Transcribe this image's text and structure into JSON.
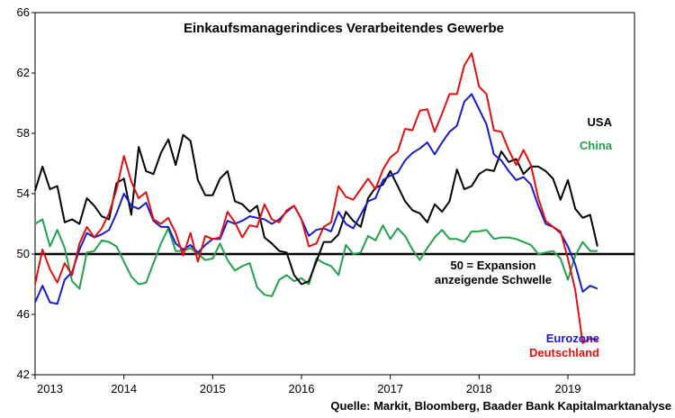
{
  "chart_data": {
    "type": "line",
    "title": "Einkaufsmanagerindices Verarbeitendes Gewerbe",
    "source": "Quelle: Markit, Bloomberg, Baader Bank Kapitalmarktanalyse",
    "ylim": [
      42,
      66
    ],
    "yticks": [
      "42",
      "46",
      "50",
      "54",
      "58",
      "62",
      "66"
    ],
    "xlim": [
      2013,
      2019.75
    ],
    "xticks": [
      "2013",
      "2014",
      "2015",
      "2016",
      "2017",
      "2018",
      "2019"
    ],
    "threshold": {
      "value": 50,
      "label_line1": "50 = Expansion",
      "label_line2": "anzeigende Schwelle"
    },
    "colors": {
      "USA": "#000000",
      "China": "#22a14a",
      "Eurozone": "#1a1acc",
      "Deutschland": "#e01010"
    },
    "series": [
      {
        "name": "USA",
        "x": [
          2013.0,
          2013.083,
          2013.167,
          2013.25,
          2013.333,
          2013.417,
          2013.5,
          2013.583,
          2013.667,
          2013.75,
          2013.833,
          2013.917,
          2014.0,
          2014.083,
          2014.167,
          2014.25,
          2014.333,
          2014.417,
          2014.5,
          2014.583,
          2014.667,
          2014.75,
          2014.833,
          2014.917,
          2015.0,
          2015.083,
          2015.167,
          2015.25,
          2015.333,
          2015.417,
          2015.5,
          2015.583,
          2015.667,
          2015.75,
          2015.833,
          2015.917,
          2016.0,
          2016.083,
          2016.167,
          2016.25,
          2016.333,
          2016.417,
          2016.5,
          2016.583,
          2016.667,
          2016.75,
          2016.833,
          2016.917,
          2017.0,
          2017.083,
          2017.167,
          2017.25,
          2017.333,
          2017.417,
          2017.5,
          2017.583,
          2017.667,
          2017.75,
          2017.833,
          2017.917,
          2018.0,
          2018.083,
          2018.167,
          2018.25,
          2018.333,
          2018.417,
          2018.5,
          2018.583,
          2018.667,
          2018.75,
          2018.833,
          2018.917,
          2019.0,
          2019.083,
          2019.167,
          2019.25,
          2019.333
        ],
        "values": [
          54.2,
          55.8,
          54.3,
          54.5,
          52.1,
          52.3,
          52.0,
          53.7,
          53.2,
          52.5,
          52.3,
          54.7,
          55.0,
          52.6,
          57.1,
          55.5,
          55.3,
          56.7,
          57.6,
          55.9,
          57.9,
          57.5,
          54.9,
          53.9,
          53.9,
          55.0,
          55.5,
          53.5,
          53.3,
          52.8,
          53.2,
          51.1,
          50.7,
          50.2,
          50.1,
          48.6,
          48.0,
          48.2,
          49.5,
          50.8,
          50.8,
          51.3,
          52.8,
          52.2,
          51.8,
          53.7,
          54.4,
          54.6,
          55.5,
          54.5,
          53.5,
          52.9,
          52.7,
          52.1,
          53.3,
          52.8,
          53.5,
          55.6,
          54.3,
          54.5,
          55.3,
          55.6,
          55.5,
          56.8,
          56.1,
          56.3,
          55.3,
          55.8,
          55.8,
          55.5,
          55.0,
          53.6,
          54.9,
          53.0,
          52.4,
          52.6,
          50.5
        ]
      },
      {
        "name": "China",
        "x": [
          2013.0,
          2013.083,
          2013.167,
          2013.25,
          2013.333,
          2013.417,
          2013.5,
          2013.583,
          2013.667,
          2013.75,
          2013.833,
          2013.917,
          2014.0,
          2014.083,
          2014.167,
          2014.25,
          2014.333,
          2014.417,
          2014.5,
          2014.583,
          2014.667,
          2014.75,
          2014.833,
          2014.917,
          2015.0,
          2015.083,
          2015.167,
          2015.25,
          2015.333,
          2015.417,
          2015.5,
          2015.583,
          2015.667,
          2015.75,
          2015.833,
          2015.917,
          2016.0,
          2016.083,
          2016.167,
          2016.25,
          2016.333,
          2016.417,
          2016.5,
          2016.583,
          2016.667,
          2016.75,
          2016.833,
          2016.917,
          2017.0,
          2017.083,
          2017.167,
          2017.25,
          2017.333,
          2017.417,
          2017.5,
          2017.583,
          2017.667,
          2017.75,
          2017.833,
          2017.917,
          2018.0,
          2018.083,
          2018.167,
          2018.25,
          2018.333,
          2018.417,
          2018.5,
          2018.583,
          2018.667,
          2018.75,
          2018.833,
          2018.917,
          2019.0,
          2019.083,
          2019.167,
          2019.25,
          2019.333
        ],
        "values": [
          52.0,
          52.3,
          50.5,
          51.6,
          50.4,
          48.2,
          47.7,
          50.1,
          50.2,
          50.9,
          50.8,
          50.5,
          49.5,
          48.5,
          48.0,
          48.1,
          49.4,
          50.7,
          51.7,
          50.2,
          50.2,
          50.4,
          50.0,
          49.6,
          49.7,
          50.7,
          49.6,
          48.9,
          49.2,
          49.4,
          47.8,
          47.3,
          47.2,
          48.3,
          48.6,
          48.2,
          48.4,
          48.0,
          49.7,
          49.4,
          49.2,
          48.6,
          50.6,
          50.0,
          50.1,
          51.2,
          50.9,
          51.9,
          51.0,
          51.7,
          51.2,
          50.3,
          49.6,
          50.4,
          51.1,
          51.6,
          51.0,
          51.0,
          50.8,
          51.5,
          51.5,
          51.6,
          51.0,
          51.1,
          51.1,
          51.0,
          50.8,
          50.6,
          50.0,
          50.1,
          50.2,
          49.7,
          48.3,
          49.9,
          50.8,
          50.2,
          50.2
        ]
      },
      {
        "name": "Eurozone",
        "x": [
          2013.0,
          2013.083,
          2013.167,
          2013.25,
          2013.333,
          2013.417,
          2013.5,
          2013.583,
          2013.667,
          2013.75,
          2013.833,
          2013.917,
          2014.0,
          2014.083,
          2014.167,
          2014.25,
          2014.333,
          2014.417,
          2014.5,
          2014.583,
          2014.667,
          2014.75,
          2014.833,
          2014.917,
          2015.0,
          2015.083,
          2015.167,
          2015.25,
          2015.333,
          2015.417,
          2015.5,
          2015.583,
          2015.667,
          2015.75,
          2015.833,
          2015.917,
          2016.0,
          2016.083,
          2016.167,
          2016.25,
          2016.333,
          2016.417,
          2016.5,
          2016.583,
          2016.667,
          2016.75,
          2016.833,
          2016.917,
          2017.0,
          2017.083,
          2017.167,
          2017.25,
          2017.333,
          2017.417,
          2017.5,
          2017.583,
          2017.667,
          2017.75,
          2017.833,
          2017.917,
          2018.0,
          2018.083,
          2018.167,
          2018.25,
          2018.333,
          2018.417,
          2018.5,
          2018.583,
          2018.667,
          2018.75,
          2018.833,
          2018.917,
          2019.0,
          2019.083,
          2019.167,
          2019.25,
          2019.333
        ],
        "values": [
          46.8,
          47.9,
          46.8,
          46.7,
          48.3,
          48.8,
          50.3,
          51.4,
          51.1,
          51.3,
          51.6,
          52.7,
          54.0,
          53.2,
          53.0,
          53.4,
          52.2,
          51.8,
          51.8,
          50.7,
          50.3,
          50.6,
          50.1,
          50.6,
          51.0,
          51.0,
          52.2,
          52.0,
          52.2,
          52.5,
          52.4,
          52.3,
          52.0,
          52.3,
          52.8,
          53.2,
          52.3,
          51.2,
          51.6,
          51.7,
          51.5,
          52.8,
          52.0,
          51.7,
          52.6,
          53.5,
          53.7,
          54.9,
          55.2,
          55.4,
          56.2,
          56.7,
          57.0,
          57.4,
          56.6,
          57.4,
          58.1,
          58.5,
          60.1,
          60.6,
          59.6,
          58.6,
          56.6,
          56.2,
          55.5,
          54.9,
          55.1,
          54.6,
          53.2,
          52.0,
          51.8,
          51.4,
          50.5,
          49.3,
          47.5,
          47.9,
          47.7
        ]
      },
      {
        "name": "Deutschland",
        "x": [
          2013.0,
          2013.083,
          2013.167,
          2013.25,
          2013.333,
          2013.417,
          2013.5,
          2013.583,
          2013.667,
          2013.75,
          2013.833,
          2013.917,
          2014.0,
          2014.083,
          2014.167,
          2014.25,
          2014.333,
          2014.417,
          2014.5,
          2014.583,
          2014.667,
          2014.75,
          2014.833,
          2014.917,
          2015.0,
          2015.083,
          2015.167,
          2015.25,
          2015.333,
          2015.417,
          2015.5,
          2015.583,
          2015.667,
          2015.75,
          2015.833,
          2015.917,
          2016.0,
          2016.083,
          2016.167,
          2016.25,
          2016.333,
          2016.417,
          2016.5,
          2016.583,
          2016.667,
          2016.75,
          2016.833,
          2016.917,
          2017.0,
          2017.083,
          2017.167,
          2017.25,
          2017.333,
          2017.417,
          2017.5,
          2017.583,
          2017.667,
          2017.75,
          2017.833,
          2017.917,
          2018.0,
          2018.083,
          2018.167,
          2018.25,
          2018.333,
          2018.417,
          2018.5,
          2018.583,
          2018.667,
          2018.75,
          2018.833,
          2018.917,
          2019.0,
          2019.083,
          2019.167,
          2019.25,
          2019.333
        ],
        "values": [
          48.0,
          50.3,
          49.0,
          48.1,
          49.4,
          48.6,
          50.7,
          51.8,
          51.1,
          51.7,
          52.7,
          54.3,
          56.5,
          54.8,
          53.7,
          54.1,
          52.3,
          52.0,
          52.4,
          51.4,
          49.9,
          51.4,
          49.5,
          51.2,
          51.0,
          51.1,
          52.8,
          52.1,
          51.1,
          51.9,
          51.8,
          53.3,
          52.3,
          52.1,
          52.9,
          53.2,
          52.3,
          50.5,
          50.7,
          51.8,
          52.1,
          54.5,
          53.8,
          53.6,
          54.3,
          55.0,
          54.3,
          55.6,
          56.4,
          56.8,
          58.3,
          58.2,
          59.5,
          59.6,
          58.1,
          59.3,
          60.6,
          60.6,
          62.5,
          63.3,
          61.1,
          60.6,
          58.2,
          58.1,
          56.9,
          55.9,
          56.9,
          55.9,
          53.7,
          52.2,
          51.8,
          51.5,
          49.7,
          47.6,
          44.1,
          44.4,
          44.3
        ]
      }
    ]
  }
}
